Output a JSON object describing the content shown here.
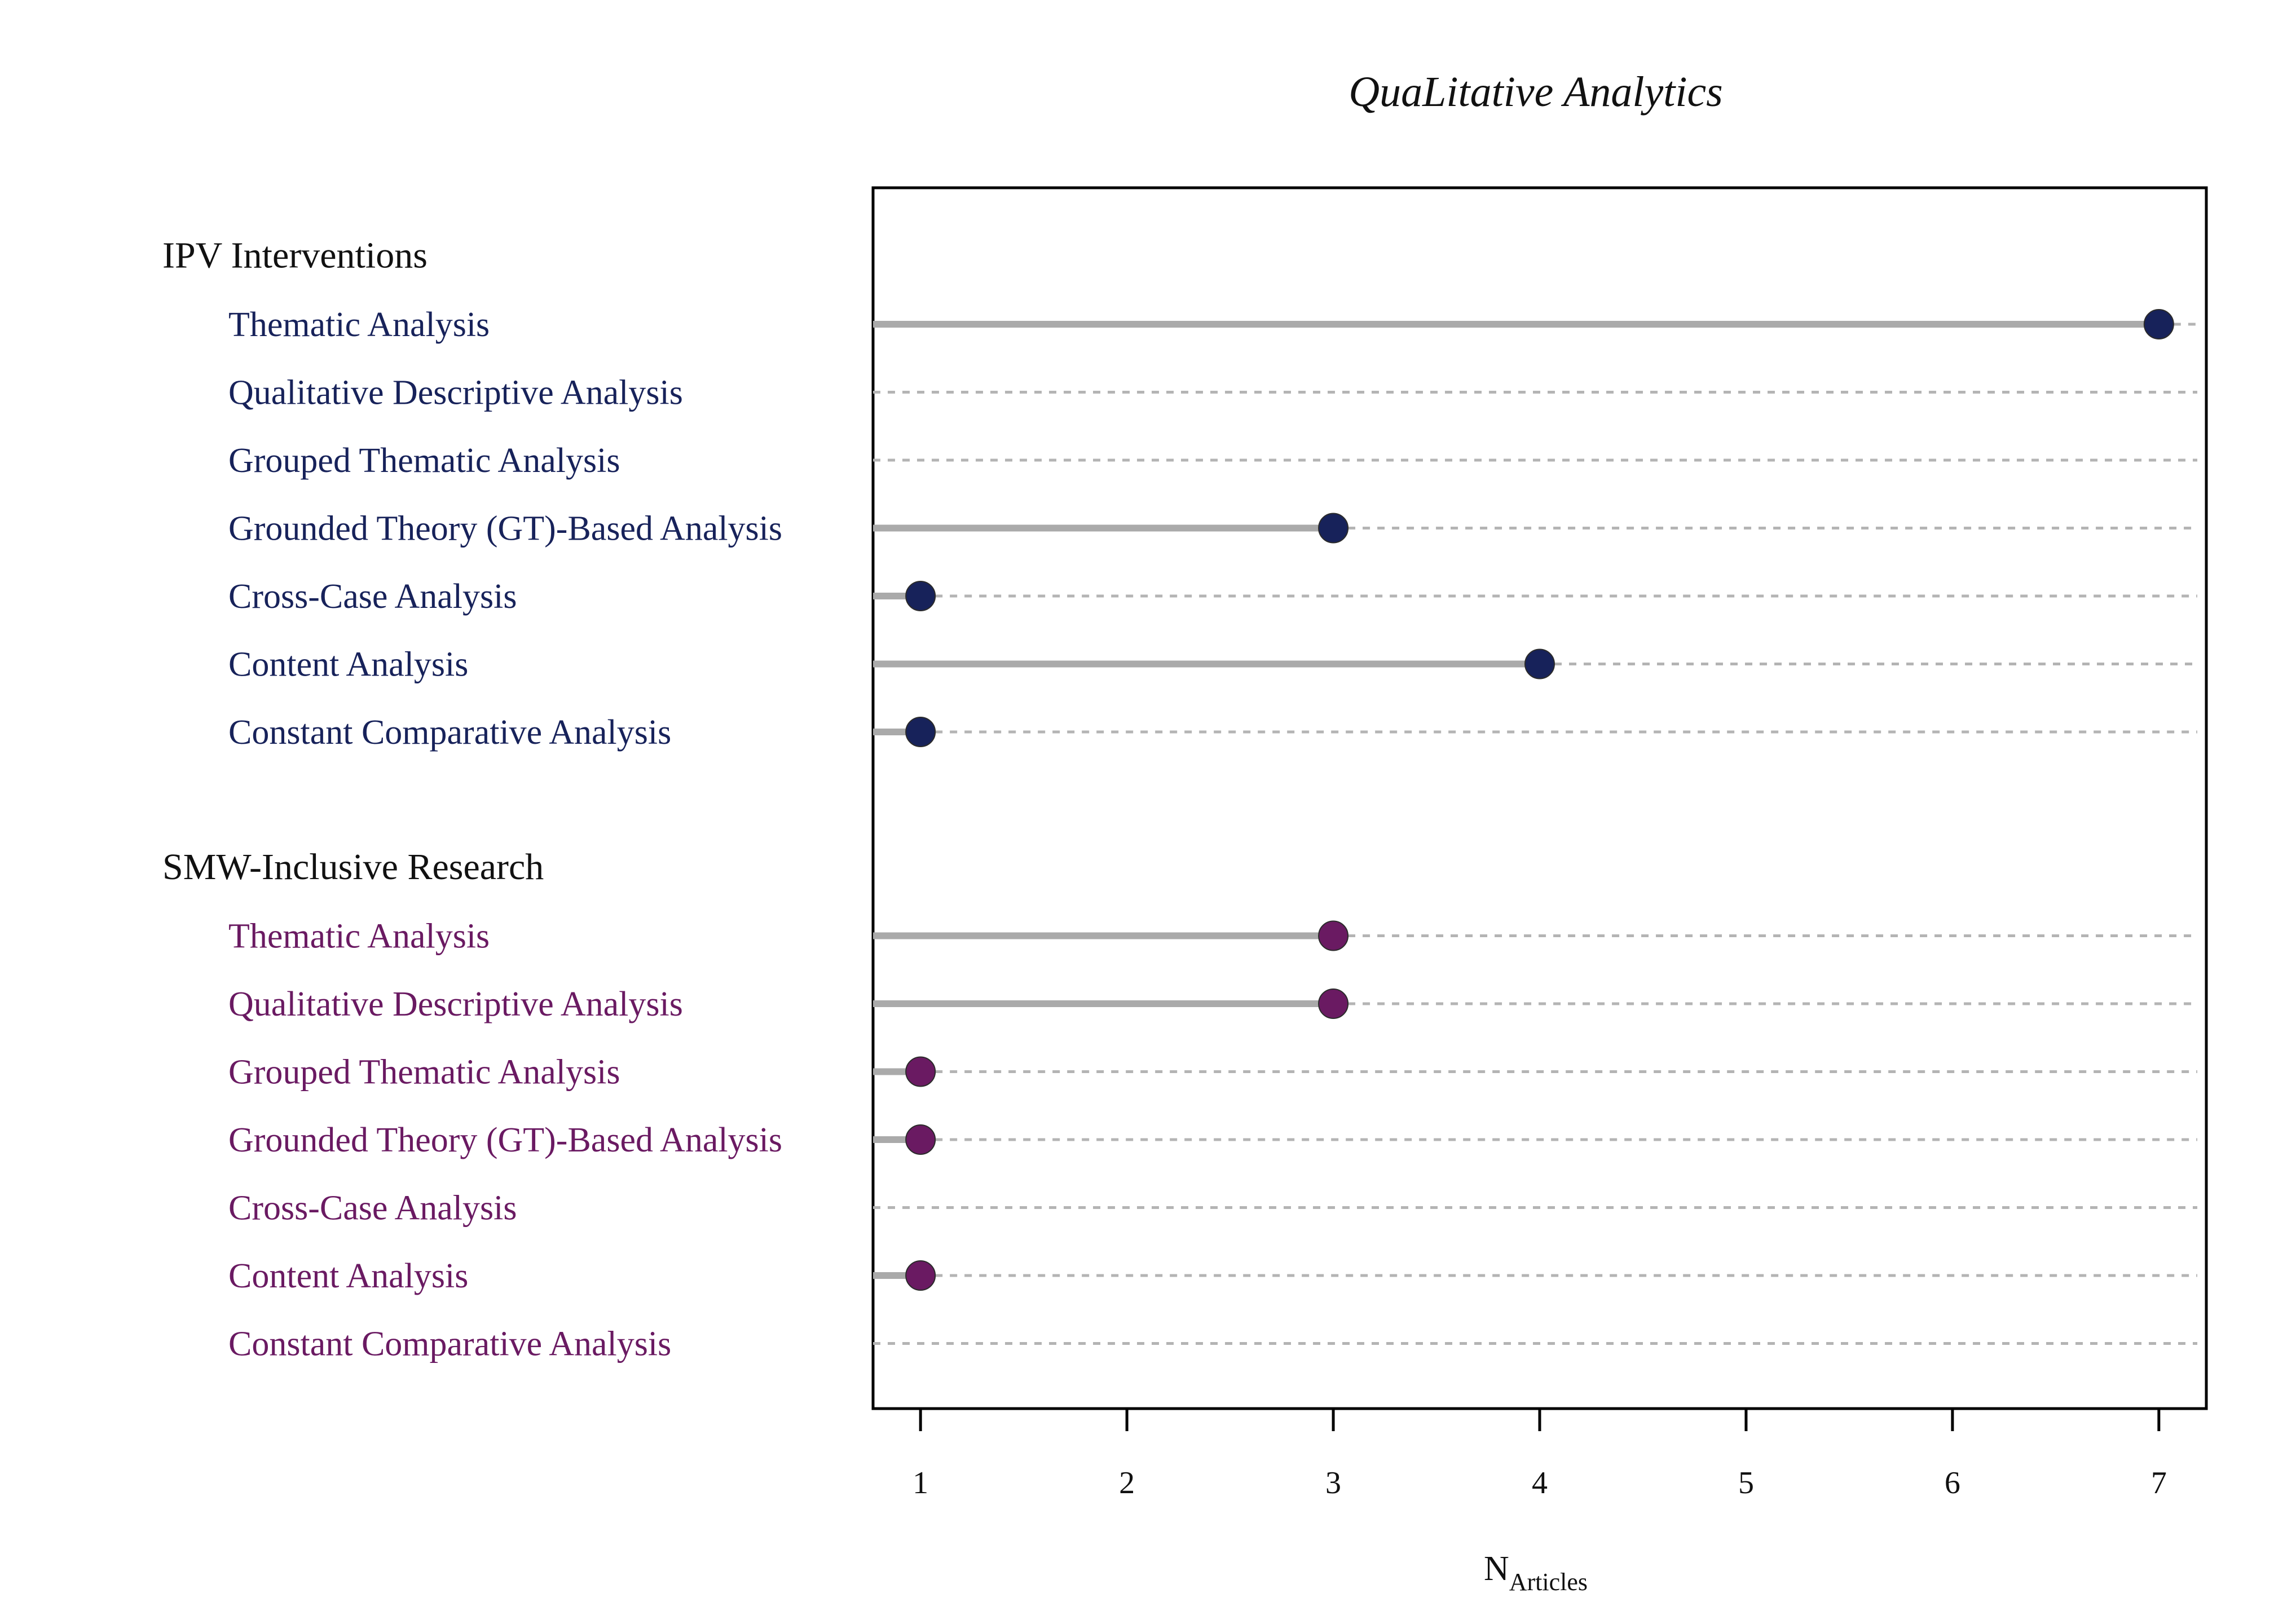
{
  "chart_data": {
    "type": "lollipop",
    "title": "QuaLitative Analytics",
    "xlabel_main": "N",
    "xlabel_sub": "Articles",
    "xlim": [
      0.77,
      7.23
    ],
    "xticks": [
      1,
      2,
      3,
      4,
      5,
      6,
      7
    ],
    "groups": [
      {
        "name": "IPV Interventions",
        "color": "#17225a",
        "items": [
          {
            "label": "Thematic Analysis",
            "value": 7
          },
          {
            "label": "Qualitative Descriptive Analysis",
            "value": 0
          },
          {
            "label": "Grouped Thematic Analysis",
            "value": 0
          },
          {
            "label": "Grounded Theory (GT)-Based Analysis",
            "value": 3
          },
          {
            "label": "Cross-Case Analysis",
            "value": 1
          },
          {
            "label": "Content Analysis",
            "value": 4
          },
          {
            "label": "Constant Comparative Analysis",
            "value": 1
          }
        ]
      },
      {
        "name": "SMW-Inclusive Research",
        "color": "#6a1a62",
        "items": [
          {
            "label": "Thematic Analysis",
            "value": 3
          },
          {
            "label": "Qualitative Descriptive Analysis",
            "value": 3
          },
          {
            "label": "Grouped Thematic Analysis",
            "value": 1
          },
          {
            "label": "Grounded Theory (GT)-Based Analysis",
            "value": 1
          },
          {
            "label": "Cross-Case Analysis",
            "value": 0
          },
          {
            "label": "Content Analysis",
            "value": 1
          },
          {
            "label": "Constant Comparative Analysis",
            "value": 0
          }
        ]
      }
    ]
  }
}
